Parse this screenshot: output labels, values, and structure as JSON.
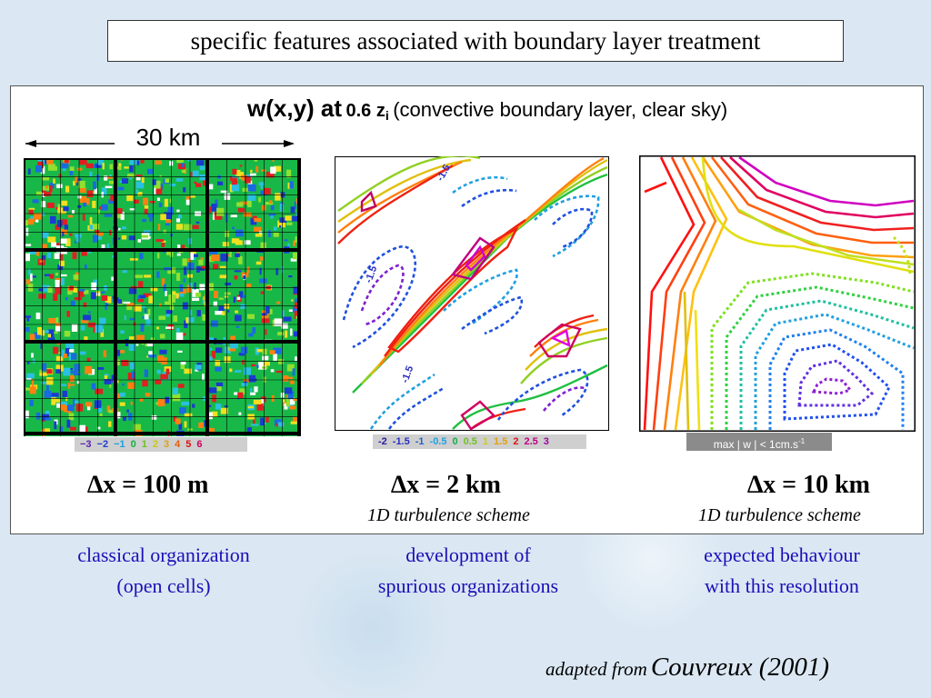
{
  "title": "specific features associated with boundary layer treatment",
  "header": {
    "w_label": "w(x,y) at",
    "level_value": "0.6 z",
    "level_sub": "i",
    "description": "(convective boundary layer, clear sky)"
  },
  "scale_label": "30 km",
  "panels": [
    {
      "dx_label": "∆x = 100 m",
      "scheme": "",
      "legend": [
        {
          "text": "−3",
          "color": "#5a1fb0"
        },
        {
          "text": "−2",
          "color": "#2240c8"
        },
        {
          "text": "−1",
          "color": "#1aa0e0"
        },
        {
          "text": "0",
          "color": "#12b040"
        },
        {
          "text": "1",
          "color": "#70c020"
        },
        {
          "text": "2",
          "color": "#c8c810"
        },
        {
          "text": "3",
          "color": "#e0a010"
        },
        {
          "text": "4",
          "color": "#e06010"
        },
        {
          "text": "5",
          "color": "#e01010"
        },
        {
          "text": "6",
          "color": "#d00060"
        }
      ],
      "caption_line1": "classical organization",
      "caption_line2": "(open cells)"
    },
    {
      "dx_label": "∆x = 2 km",
      "scheme": "1D turbulence scheme",
      "legend": [
        {
          "text": "-2",
          "color": "#2a1aa0"
        },
        {
          "text": "-1.5",
          "color": "#2a30c0"
        },
        {
          "text": "-1",
          "color": "#2060d0"
        },
        {
          "text": "-0.5",
          "color": "#20a0e0"
        },
        {
          "text": "0",
          "color": "#10b040"
        },
        {
          "text": "0.5",
          "color": "#70c020"
        },
        {
          "text": "1",
          "color": "#c8d010"
        },
        {
          "text": "1.5",
          "color": "#e0a010"
        },
        {
          "text": "2",
          "color": "#e01010"
        },
        {
          "text": "2.5",
          "color": "#c00080"
        },
        {
          "text": "3",
          "color": "#a000a0"
        }
      ],
      "contour_labels": [
        "-1.5",
        "-1.5",
        "-1.5"
      ],
      "caption_line1": "development of",
      "caption_line2": "spurious organizations"
    },
    {
      "dx_label": "∆x = 10 km",
      "scheme": "1D turbulence scheme",
      "max_note": "max | w | < 1cm.s",
      "max_note_sup": "-1",
      "caption_line1": "expected behaviour",
      "caption_line2": "with this resolution"
    }
  ],
  "credit": {
    "prefix": "adapted from",
    "source": "Couvreux (2001)"
  },
  "colors": {
    "caption": "#1a0fb8",
    "background": "#dbe8f3"
  }
}
